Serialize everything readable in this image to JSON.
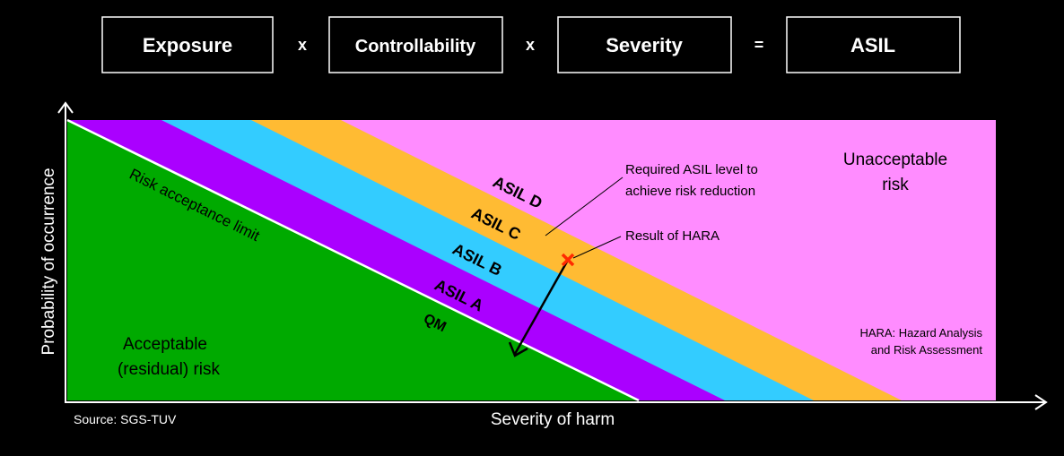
{
  "equation": {
    "terms": [
      "Exposure",
      "Controllability",
      "Severity",
      "ASIL"
    ],
    "operators": [
      "x",
      "x",
      "="
    ]
  },
  "axes": {
    "y_label": "Probability of occurrence",
    "x_label": "Severity of harm"
  },
  "bands": [
    {
      "label": "QM",
      "color": "#00aa00"
    },
    {
      "label": "ASIL A",
      "color": "#aa00ff"
    },
    {
      "label": "ASIL B",
      "color": "#33ccff"
    },
    {
      "label": "ASIL C",
      "color": "#ffbb33"
    },
    {
      "label": "ASIL D",
      "color": "#ff8cff"
    }
  ],
  "risk_acceptance_limit": "Risk acceptance limit",
  "regions": {
    "acceptable": [
      "Acceptable",
      "(residual) risk"
    ],
    "unacceptable": [
      "Unacceptable",
      "risk"
    ]
  },
  "callouts": {
    "required": [
      "Required ASIL level to",
      "achieve risk reduction"
    ],
    "hara_result": "Result of  HARA"
  },
  "footnote": [
    "HARA: Hazard Analysis",
    "and Risk Assessment"
  ],
  "source": "Source: SGS-TUV",
  "colors": {
    "background": "#000000",
    "marker": "#ff2a00",
    "acceptance_line": "#ffffff",
    "axis": "#ffffff"
  }
}
